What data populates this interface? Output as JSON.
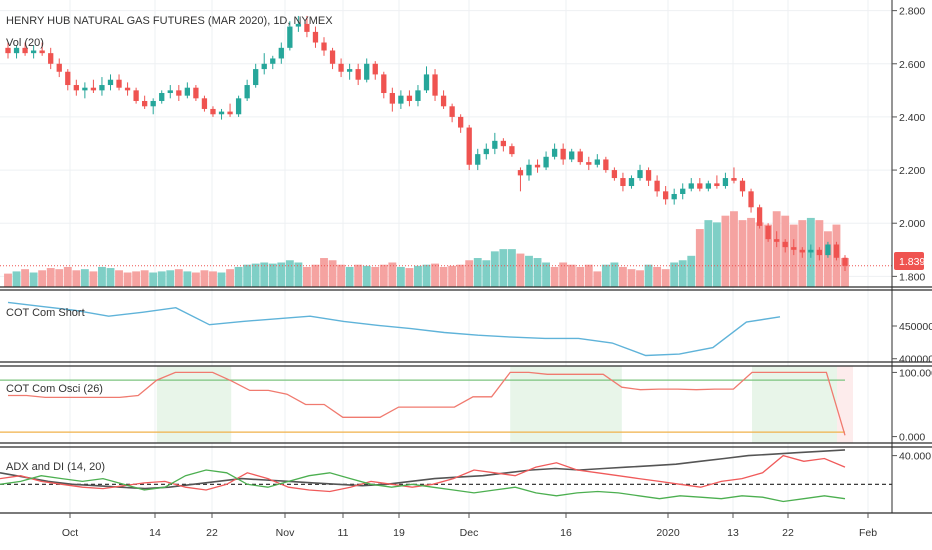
{
  "chart_data": {
    "type": "candlestick",
    "title": "HENRY HUB NATURAL GAS FUTURES (MAR 2020), 1D, NYMEX",
    "volume_label": "Vol (20)",
    "last_price_label": "1.839",
    "price_axis": {
      "ticks": [
        "2.800",
        "2.600",
        "2.400",
        "2.200",
        "2.000",
        "1.800"
      ],
      "ylim": [
        1.76,
        2.84
      ]
    },
    "x_ticks": [
      "Oct",
      "14",
      "22",
      "Nov",
      "11",
      "19",
      "Dec",
      "16",
      "2020",
      "13",
      "22",
      "Feb"
    ],
    "candles": [
      {
        "o": 2.66,
        "h": 2.68,
        "l": 2.62,
        "c": 2.64
      },
      {
        "o": 2.64,
        "h": 2.67,
        "l": 2.62,
        "c": 2.66
      },
      {
        "o": 2.66,
        "h": 2.68,
        "l": 2.63,
        "c": 2.64
      },
      {
        "o": 2.64,
        "h": 2.67,
        "l": 2.62,
        "c": 2.65
      },
      {
        "o": 2.65,
        "h": 2.68,
        "l": 2.63,
        "c": 2.64
      },
      {
        "o": 2.64,
        "h": 2.66,
        "l": 2.58,
        "c": 2.6
      },
      {
        "o": 2.6,
        "h": 2.62,
        "l": 2.55,
        "c": 2.57
      },
      {
        "o": 2.57,
        "h": 2.58,
        "l": 2.5,
        "c": 2.52
      },
      {
        "o": 2.52,
        "h": 2.54,
        "l": 2.48,
        "c": 2.5
      },
      {
        "o": 2.5,
        "h": 2.53,
        "l": 2.47,
        "c": 2.51
      },
      {
        "o": 2.51,
        "h": 2.54,
        "l": 2.49,
        "c": 2.5
      },
      {
        "o": 2.5,
        "h": 2.55,
        "l": 2.48,
        "c": 2.52
      },
      {
        "o": 2.52,
        "h": 2.56,
        "l": 2.5,
        "c": 2.54
      },
      {
        "o": 2.54,
        "h": 2.56,
        "l": 2.5,
        "c": 2.51
      },
      {
        "o": 2.51,
        "h": 2.53,
        "l": 2.48,
        "c": 2.5
      },
      {
        "o": 2.5,
        "h": 2.51,
        "l": 2.45,
        "c": 2.46
      },
      {
        "o": 2.46,
        "h": 2.48,
        "l": 2.43,
        "c": 2.44
      },
      {
        "o": 2.44,
        "h": 2.47,
        "l": 2.41,
        "c": 2.46
      },
      {
        "o": 2.46,
        "h": 2.5,
        "l": 2.45,
        "c": 2.49
      },
      {
        "o": 2.49,
        "h": 2.52,
        "l": 2.47,
        "c": 2.5
      },
      {
        "o": 2.5,
        "h": 2.52,
        "l": 2.46,
        "c": 2.48
      },
      {
        "o": 2.48,
        "h": 2.53,
        "l": 2.47,
        "c": 2.51
      },
      {
        "o": 2.51,
        "h": 2.52,
        "l": 2.46,
        "c": 2.47
      },
      {
        "o": 2.47,
        "h": 2.48,
        "l": 2.42,
        "c": 2.43
      },
      {
        "o": 2.43,
        "h": 2.44,
        "l": 2.4,
        "c": 2.41
      },
      {
        "o": 2.41,
        "h": 2.43,
        "l": 2.39,
        "c": 2.42
      },
      {
        "o": 2.42,
        "h": 2.45,
        "l": 2.4,
        "c": 2.41
      },
      {
        "o": 2.41,
        "h": 2.48,
        "l": 2.4,
        "c": 2.47
      },
      {
        "o": 2.47,
        "h": 2.54,
        "l": 2.46,
        "c": 2.52
      },
      {
        "o": 2.52,
        "h": 2.6,
        "l": 2.51,
        "c": 2.58
      },
      {
        "o": 2.58,
        "h": 2.64,
        "l": 2.56,
        "c": 2.6
      },
      {
        "o": 2.6,
        "h": 2.63,
        "l": 2.58,
        "c": 2.62
      },
      {
        "o": 2.62,
        "h": 2.68,
        "l": 2.6,
        "c": 2.66
      },
      {
        "o": 2.66,
        "h": 2.76,
        "l": 2.65,
        "c": 2.74
      },
      {
        "o": 2.74,
        "h": 2.78,
        "l": 2.72,
        "c": 2.75
      },
      {
        "o": 2.75,
        "h": 2.78,
        "l": 2.7,
        "c": 2.72
      },
      {
        "o": 2.72,
        "h": 2.74,
        "l": 2.66,
        "c": 2.68
      },
      {
        "o": 2.68,
        "h": 2.7,
        "l": 2.63,
        "c": 2.65
      },
      {
        "o": 2.65,
        "h": 2.66,
        "l": 2.58,
        "c": 2.6
      },
      {
        "o": 2.6,
        "h": 2.62,
        "l": 2.55,
        "c": 2.57
      },
      {
        "o": 2.57,
        "h": 2.6,
        "l": 2.54,
        "c": 2.58
      },
      {
        "o": 2.58,
        "h": 2.6,
        "l": 2.52,
        "c": 2.54
      },
      {
        "o": 2.54,
        "h": 2.62,
        "l": 2.53,
        "c": 2.6
      },
      {
        "o": 2.6,
        "h": 2.61,
        "l": 2.54,
        "c": 2.56
      },
      {
        "o": 2.56,
        "h": 2.57,
        "l": 2.47,
        "c": 2.49
      },
      {
        "o": 2.49,
        "h": 2.51,
        "l": 2.42,
        "c": 2.45
      },
      {
        "o": 2.45,
        "h": 2.5,
        "l": 2.43,
        "c": 2.48
      },
      {
        "o": 2.48,
        "h": 2.5,
        "l": 2.44,
        "c": 2.46
      },
      {
        "o": 2.46,
        "h": 2.52,
        "l": 2.44,
        "c": 2.5
      },
      {
        "o": 2.5,
        "h": 2.59,
        "l": 2.49,
        "c": 2.56
      },
      {
        "o": 2.56,
        "h": 2.58,
        "l": 2.46,
        "c": 2.48
      },
      {
        "o": 2.48,
        "h": 2.5,
        "l": 2.43,
        "c": 2.44
      },
      {
        "o": 2.44,
        "h": 2.45,
        "l": 2.38,
        "c": 2.4
      },
      {
        "o": 2.4,
        "h": 2.41,
        "l": 2.34,
        "c": 2.36
      },
      {
        "o": 2.36,
        "h": 2.37,
        "l": 2.2,
        "c": 2.22
      },
      {
        "o": 2.22,
        "h": 2.28,
        "l": 2.2,
        "c": 2.26
      },
      {
        "o": 2.26,
        "h": 2.3,
        "l": 2.24,
        "c": 2.28
      },
      {
        "o": 2.28,
        "h": 2.34,
        "l": 2.26,
        "c": 2.31
      },
      {
        "o": 2.31,
        "h": 2.32,
        "l": 2.27,
        "c": 2.29
      },
      {
        "o": 2.29,
        "h": 2.3,
        "l": 2.25,
        "c": 2.26
      },
      {
        "o": 2.2,
        "h": 2.21,
        "l": 2.12,
        "c": 2.18
      },
      {
        "o": 2.18,
        "h": 2.24,
        "l": 2.16,
        "c": 2.22
      },
      {
        "o": 2.22,
        "h": 2.24,
        "l": 2.19,
        "c": 2.21
      },
      {
        "o": 2.21,
        "h": 2.27,
        "l": 2.2,
        "c": 2.25
      },
      {
        "o": 2.25,
        "h": 2.3,
        "l": 2.24,
        "c": 2.28
      },
      {
        "o": 2.28,
        "h": 2.3,
        "l": 2.22,
        "c": 2.24
      },
      {
        "o": 2.24,
        "h": 2.28,
        "l": 2.23,
        "c": 2.27
      },
      {
        "o": 2.27,
        "h": 2.28,
        "l": 2.22,
        "c": 2.23
      },
      {
        "o": 2.23,
        "h": 2.25,
        "l": 2.2,
        "c": 2.22
      },
      {
        "o": 2.22,
        "h": 2.26,
        "l": 2.21,
        "c": 2.24
      },
      {
        "o": 2.24,
        "h": 2.25,
        "l": 2.19,
        "c": 2.2
      },
      {
        "o": 2.2,
        "h": 2.21,
        "l": 2.16,
        "c": 2.17
      },
      {
        "o": 2.17,
        "h": 2.19,
        "l": 2.12,
        "c": 2.14
      },
      {
        "o": 2.14,
        "h": 2.18,
        "l": 2.13,
        "c": 2.17
      },
      {
        "o": 2.17,
        "h": 2.22,
        "l": 2.16,
        "c": 2.2
      },
      {
        "o": 2.2,
        "h": 2.21,
        "l": 2.14,
        "c": 2.16
      },
      {
        "o": 2.16,
        "h": 2.18,
        "l": 2.1,
        "c": 2.12
      },
      {
        "o": 2.12,
        "h": 2.14,
        "l": 2.07,
        "c": 2.09
      },
      {
        "o": 2.09,
        "h": 2.13,
        "l": 2.07,
        "c": 2.11
      },
      {
        "o": 2.11,
        "h": 2.15,
        "l": 2.09,
        "c": 2.13
      },
      {
        "o": 2.13,
        "h": 2.17,
        "l": 2.12,
        "c": 2.15
      },
      {
        "o": 2.15,
        "h": 2.17,
        "l": 2.12,
        "c": 2.13
      },
      {
        "o": 2.13,
        "h": 2.16,
        "l": 2.12,
        "c": 2.15
      },
      {
        "o": 2.15,
        "h": 2.18,
        "l": 2.13,
        "c": 2.14
      },
      {
        "o": 2.14,
        "h": 2.19,
        "l": 2.13,
        "c": 2.17
      },
      {
        "o": 2.17,
        "h": 2.21,
        "l": 2.15,
        "c": 2.16
      },
      {
        "o": 2.16,
        "h": 2.17,
        "l": 2.1,
        "c": 2.12
      },
      {
        "o": 2.12,
        "h": 2.13,
        "l": 2.04,
        "c": 2.06
      },
      {
        "o": 2.06,
        "h": 2.07,
        "l": 1.98,
        "c": 1.99
      },
      {
        "o": 1.99,
        "h": 2.0,
        "l": 1.93,
        "c": 1.94
      },
      {
        "o": 1.94,
        "h": 1.97,
        "l": 1.91,
        "c": 1.93
      },
      {
        "o": 1.93,
        "h": 1.94,
        "l": 1.89,
        "c": 1.91
      },
      {
        "o": 1.91,
        "h": 1.94,
        "l": 1.88,
        "c": 1.9
      },
      {
        "o": 1.9,
        "h": 1.91,
        "l": 1.87,
        "c": 1.89
      },
      {
        "o": 1.89,
        "h": 1.92,
        "l": 1.87,
        "c": 1.9
      },
      {
        "o": 1.9,
        "h": 1.91,
        "l": 1.86,
        "c": 1.88
      },
      {
        "o": 1.88,
        "h": 1.93,
        "l": 1.87,
        "c": 1.92
      },
      {
        "o": 1.92,
        "h": 1.93,
        "l": 1.86,
        "c": 1.87
      },
      {
        "o": 1.87,
        "h": 1.88,
        "l": 1.82,
        "c": 1.84
      }
    ],
    "volume": [
      {
        "v": 12,
        "up": false
      },
      {
        "v": 14,
        "up": true
      },
      {
        "v": 16,
        "up": false
      },
      {
        "v": 13,
        "up": true
      },
      {
        "v": 15,
        "up": false
      },
      {
        "v": 17,
        "up": false
      },
      {
        "v": 16,
        "up": false
      },
      {
        "v": 18,
        "up": false
      },
      {
        "v": 15,
        "up": false
      },
      {
        "v": 16,
        "up": true
      },
      {
        "v": 14,
        "up": false
      },
      {
        "v": 18,
        "up": true
      },
      {
        "v": 17,
        "up": true
      },
      {
        "v": 15,
        "up": false
      },
      {
        "v": 13,
        "up": false
      },
      {
        "v": 14,
        "up": false
      },
      {
        "v": 15,
        "up": false
      },
      {
        "v": 13,
        "up": true
      },
      {
        "v": 14,
        "up": true
      },
      {
        "v": 15,
        "up": true
      },
      {
        "v": 16,
        "up": false
      },
      {
        "v": 14,
        "up": true
      },
      {
        "v": 13,
        "up": false
      },
      {
        "v": 15,
        "up": false
      },
      {
        "v": 14,
        "up": false
      },
      {
        "v": 13,
        "up": true
      },
      {
        "v": 16,
        "up": false
      },
      {
        "v": 18,
        "up": true
      },
      {
        "v": 20,
        "up": true
      },
      {
        "v": 21,
        "up": true
      },
      {
        "v": 22,
        "up": true
      },
      {
        "v": 21,
        "up": true
      },
      {
        "v": 22,
        "up": true
      },
      {
        "v": 24,
        "up": true
      },
      {
        "v": 22,
        "up": true
      },
      {
        "v": 18,
        "up": false
      },
      {
        "v": 20,
        "up": false
      },
      {
        "v": 26,
        "up": false
      },
      {
        "v": 24,
        "up": false
      },
      {
        "v": 20,
        "up": false
      },
      {
        "v": 18,
        "up": true
      },
      {
        "v": 20,
        "up": false
      },
      {
        "v": 19,
        "up": true
      },
      {
        "v": 18,
        "up": false
      },
      {
        "v": 20,
        "up": false
      },
      {
        "v": 22,
        "up": false
      },
      {
        "v": 18,
        "up": true
      },
      {
        "v": 17,
        "up": false
      },
      {
        "v": 19,
        "up": true
      },
      {
        "v": 20,
        "up": true
      },
      {
        "v": 21,
        "up": false
      },
      {
        "v": 18,
        "up": false
      },
      {
        "v": 19,
        "up": false
      },
      {
        "v": 20,
        "up": false
      },
      {
        "v": 24,
        "up": false
      },
      {
        "v": 26,
        "up": true
      },
      {
        "v": 24,
        "up": true
      },
      {
        "v": 32,
        "up": true
      },
      {
        "v": 34,
        "up": true
      },
      {
        "v": 34,
        "up": true
      },
      {
        "v": 30,
        "up": false
      },
      {
        "v": 28,
        "up": true
      },
      {
        "v": 26,
        "up": true
      },
      {
        "v": 22,
        "up": true
      },
      {
        "v": 18,
        "up": false
      },
      {
        "v": 22,
        "up": false
      },
      {
        "v": 20,
        "up": false
      },
      {
        "v": 18,
        "up": false
      },
      {
        "v": 20,
        "up": false
      },
      {
        "v": 14,
        "up": false
      },
      {
        "v": 20,
        "up": true
      },
      {
        "v": 22,
        "up": true
      },
      {
        "v": 18,
        "up": false
      },
      {
        "v": 16,
        "up": false
      },
      {
        "v": 15,
        "up": false
      },
      {
        "v": 20,
        "up": true
      },
      {
        "v": 18,
        "up": false
      },
      {
        "v": 16,
        "up": false
      },
      {
        "v": 22,
        "up": true
      },
      {
        "v": 24,
        "up": true
      },
      {
        "v": 28,
        "up": true
      },
      {
        "v": 52,
        "up": false
      },
      {
        "v": 60,
        "up": true
      },
      {
        "v": 58,
        "up": true
      },
      {
        "v": 64,
        "up": false
      },
      {
        "v": 68,
        "up": false
      },
      {
        "v": 60,
        "up": false
      },
      {
        "v": 62,
        "up": false
      },
      {
        "v": 58,
        "up": false
      },
      {
        "v": 56,
        "up": false
      },
      {
        "v": 68,
        "up": false
      },
      {
        "v": 64,
        "up": false
      },
      {
        "v": 56,
        "up": false
      },
      {
        "v": 60,
        "up": false
      },
      {
        "v": 62,
        "up": true
      },
      {
        "v": 60,
        "up": false
      },
      {
        "v": 50,
        "up": false
      },
      {
        "v": 56,
        "up": false
      },
      {
        "v": 26,
        "up": false
      }
    ],
    "indicators": [
      {
        "label": "COT Com Short",
        "ticks": [
          "450000",
          "400000"
        ],
        "ylim": [
          395000,
          505000
        ],
        "values": [
          486000,
          480000,
          474000,
          465000,
          471000,
          478000,
          452000,
          457000,
          461000,
          465000,
          457000,
          451000,
          446000,
          440000,
          436000,
          433000,
          431000,
          431000,
          424000,
          405000,
          407000,
          417000,
          456000,
          464000
        ]
      },
      {
        "label": "COT Com Osci (26)",
        "ticks": [
          "100.000",
          "0.000"
        ],
        "ylim": [
          -10,
          110
        ],
        "values": [
          64,
          64,
          61,
          61,
          61,
          61,
          61,
          64,
          88,
          100,
          100,
          100,
          87,
          72,
          72,
          66,
          50,
          50,
          30,
          30,
          30,
          46,
          46,
          46,
          46,
          62,
          62,
          100,
          100,
          97,
          97,
          97,
          97,
          77,
          73,
          74,
          74,
          73,
          74,
          74,
          100,
          100,
          100,
          100,
          100,
          2
        ],
        "upper_level": 88,
        "lower_level": 7,
        "highlight_zones": [
          [
            8,
            12
          ],
          [
            27,
            33
          ],
          [
            40,
            45
          ]
        ]
      },
      {
        "label": "ADX and DI (14, 20)",
        "ticks": [
          "40.000"
        ],
        "ylim": [
          0,
          46
        ],
        "reference_level": 20,
        "series": [
          {
            "values": [
              28,
              25,
              22,
              20,
              19,
              18,
              17,
              18,
              20,
              22,
              24,
              23,
              22,
              21,
              20,
              19,
              20,
              22,
              24,
              25,
              26,
              28,
              30,
              31,
              30,
              31,
              32,
              33,
              34,
              36,
              38,
              40,
              41,
              42,
              43,
              44
            ]
          },
          {
            "values": [
              24,
              26,
              22,
              20,
              18,
              17,
              19,
              21,
              22,
              18,
              16,
              20,
              28,
              24,
              18,
              16,
              15,
              18,
              22,
              20,
              18,
              20,
              24,
              30,
              28,
              26,
              32,
              35,
              30,
              28,
              26,
              24,
              22,
              20,
              18,
              22,
              24,
              28,
              40,
              36,
              38,
              32
            ]
          },
          {
            "values": [
              20,
              22,
              26,
              24,
              22,
              24,
              20,
              16,
              18,
              26,
              30,
              28,
              20,
              18,
              22,
              26,
              28,
              24,
              20,
              18,
              20,
              18,
              16,
              14,
              16,
              18,
              14,
              12,
              14,
              15,
              14,
              12,
              10,
              12,
              11,
              10,
              12,
              11,
              8,
              10,
              12,
              10
            ]
          }
        ]
      }
    ]
  }
}
